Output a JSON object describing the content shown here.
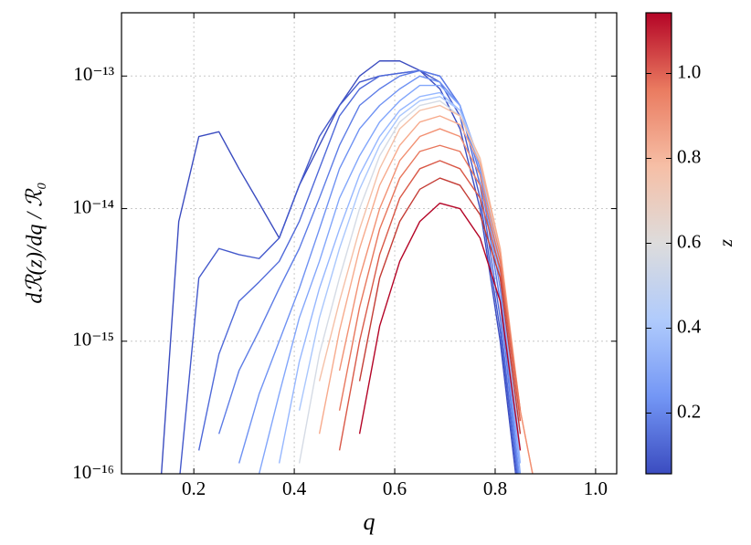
{
  "chart_data": {
    "type": "line",
    "x_label": "q",
    "y_label": "dℛ(z)/dq / ℛ₀",
    "x": [
      0.13,
      0.17,
      0.21,
      0.25,
      0.29,
      0.33,
      0.37,
      0.41,
      0.45,
      0.49,
      0.53,
      0.57,
      0.61,
      0.65,
      0.69,
      0.73,
      0.77,
      0.81,
      0.85,
      0.89
    ],
    "xlim": [
      0.056,
      1.042
    ],
    "xticks": [
      0.2,
      0.4,
      0.6,
      0.8,
      {
        "value": 1,
        "label": "1.0"
      }
    ],
    "ylim": [
      1e-16,
      3e-13
    ],
    "yticks": [
      {
        "value": 1e-16,
        "label": "10⁻¹⁶"
      },
      {
        "value": 1e-15,
        "label": "10⁻¹⁵"
      },
      {
        "value": 1e-14,
        "label": "10⁻¹⁴"
      },
      {
        "value": 1e-13,
        "label": "10⁻¹³"
      }
    ],
    "log_y": true,
    "grid": true,
    "series": [
      {
        "color": "#3b4cc0",
        "values": [
          5e-17,
          8e-15,
          3.5e-14,
          3.8e-14,
          2e-14,
          1.1e-14,
          6e-15,
          1.5e-14,
          3e-14,
          6e-14,
          1e-13,
          1.3e-13,
          1.3e-13,
          1.1e-13,
          8e-14,
          4e-14,
          1e-14,
          1e-15,
          5e-17,
          null
        ]
      },
      {
        "color": "#4358cb",
        "values": [
          null,
          8e-17,
          3e-15,
          5e-15,
          4.5e-15,
          4.2e-15,
          6e-15,
          1.5e-14,
          3.5e-14,
          6e-14,
          9e-14,
          1e-13,
          1.05e-13,
          1.1e-13,
          9e-14,
          5e-14,
          1.2e-14,
          1.2e-15,
          6e-17,
          null
        ]
      },
      {
        "color": "#4f69d9",
        "values": [
          null,
          null,
          1.5e-16,
          8e-16,
          2e-15,
          2.8e-15,
          4e-15,
          8e-15,
          2e-14,
          5e-14,
          8e-14,
          1e-13,
          1.05e-13,
          1.1e-13,
          1e-13,
          6e-14,
          1.5e-14,
          1.5e-15,
          6e-17,
          null
        ]
      },
      {
        "color": "#5d7ce6",
        "values": [
          null,
          null,
          null,
          2e-16,
          6e-16,
          1.2e-15,
          2.5e-15,
          5e-15,
          1.2e-14,
          3e-14,
          6e-14,
          8e-14,
          1e-13,
          1.1e-13,
          1e-13,
          6e-14,
          1.8e-14,
          2e-15,
          7e-17,
          null
        ]
      },
      {
        "color": "#6f92f3",
        "values": [
          null,
          null,
          null,
          null,
          1.2e-16,
          4e-16,
          1e-15,
          2.5e-15,
          7e-15,
          2e-14,
          4e-14,
          6e-14,
          8e-14,
          1e-13,
          9e-14,
          6e-14,
          2e-14,
          2.5e-15,
          8e-17,
          null
        ]
      },
      {
        "color": "#82a6fb",
        "values": [
          null,
          null,
          null,
          null,
          null,
          1e-16,
          4e-16,
          1.5e-15,
          4e-15,
          1.2e-14,
          2.5e-14,
          4.5e-14,
          6.5e-14,
          8.5e-14,
          8.5e-14,
          6e-14,
          2.2e-14,
          3e-15,
          1e-16,
          null
        ]
      },
      {
        "color": "#96b7ff",
        "values": [
          null,
          null,
          null,
          null,
          null,
          null,
          1.2e-16,
          7e-16,
          2.5e-15,
          7e-15,
          1.8e-14,
          3.5e-14,
          5.5e-14,
          7e-14,
          7.5e-14,
          5.5e-14,
          2.2e-14,
          3.5e-15,
          1.2e-16,
          null
        ]
      },
      {
        "color": "#aac7fd",
        "values": [
          null,
          null,
          null,
          null,
          null,
          null,
          null,
          3e-16,
          1.5e-15,
          5e-15,
          1.4e-14,
          3e-14,
          5e-14,
          6.5e-14,
          7e-14,
          5.5e-14,
          2.3e-14,
          4e-15,
          1.5e-16,
          null
        ]
      },
      {
        "color": "#d5dbe5",
        "values": [
          null,
          null,
          null,
          null,
          null,
          null,
          null,
          1.2e-16,
          8e-16,
          3e-15,
          1e-14,
          2.5e-14,
          4.5e-14,
          6e-14,
          6.5e-14,
          5e-14,
          2.3e-14,
          4.5e-15,
          2e-16,
          null
        ]
      },
      {
        "color": "#f5c0a7",
        "values": [
          null,
          null,
          null,
          null,
          null,
          null,
          null,
          null,
          5e-16,
          2e-15,
          7e-15,
          2e-14,
          4e-14,
          5.5e-14,
          6e-14,
          5e-14,
          2.4e-14,
          5e-15,
          2.5e-16,
          null
        ]
      },
      {
        "color": "#f7aa8c",
        "values": [
          null,
          null,
          null,
          null,
          null,
          null,
          null,
          null,
          2e-16,
          1.2e-15,
          5e-15,
          1.5e-14,
          3e-14,
          4.5e-14,
          5e-14,
          4.3e-14,
          2.2e-14,
          5e-15,
          3e-16,
          5e-17
        ]
      },
      {
        "color": "#f29072",
        "values": [
          null,
          null,
          null,
          null,
          null,
          null,
          null,
          null,
          null,
          6e-16,
          3e-15,
          1e-14,
          2.3e-14,
          3.5e-14,
          4e-14,
          3.5e-14,
          1.8e-14,
          4.5e-15,
          3e-16,
          5e-17
        ]
      },
      {
        "color": "#e8765c",
        "values": [
          null,
          null,
          null,
          null,
          null,
          null,
          null,
          null,
          null,
          3e-16,
          1.8e-15,
          7e-15,
          1.7e-14,
          2.7e-14,
          3e-14,
          2.7e-14,
          1.5e-14,
          4e-15,
          3e-16,
          null
        ]
      },
      {
        "color": "#d95847",
        "values": [
          null,
          null,
          null,
          null,
          null,
          null,
          null,
          null,
          null,
          1.5e-16,
          1e-15,
          4.5e-15,
          1.2e-14,
          2e-14,
          2.3e-14,
          2e-14,
          1.2e-14,
          3.5e-15,
          2.5e-16,
          null
        ]
      },
      {
        "color": "#c43c35",
        "values": [
          null,
          null,
          null,
          null,
          null,
          null,
          null,
          null,
          null,
          null,
          5e-16,
          3e-15,
          8e-15,
          1.4e-14,
          1.7e-14,
          1.5e-14,
          9e-15,
          3e-15,
          2e-16,
          null
        ]
      },
      {
        "color": "#b40426",
        "values": [
          null,
          null,
          null,
          null,
          null,
          null,
          null,
          null,
          null,
          null,
          2e-16,
          1.3e-15,
          4e-15,
          8e-15,
          1.1e-14,
          1e-14,
          6e-15,
          2e-15,
          1.5e-16,
          null
        ]
      }
    ],
    "colorbar": {
      "label": "z",
      "lim": [
        0.057,
        1.143
      ],
      "ticks": [
        0.2,
        0.4,
        0.6,
        0.8,
        {
          "value": 1,
          "label": "1.0"
        }
      ],
      "colors": [
        "#3b4cc0",
        "#7396f5",
        "#b0cbfc",
        "#dddcdc",
        "#f6bfa6",
        "#ea7b60",
        "#b40426"
      ]
    }
  }
}
